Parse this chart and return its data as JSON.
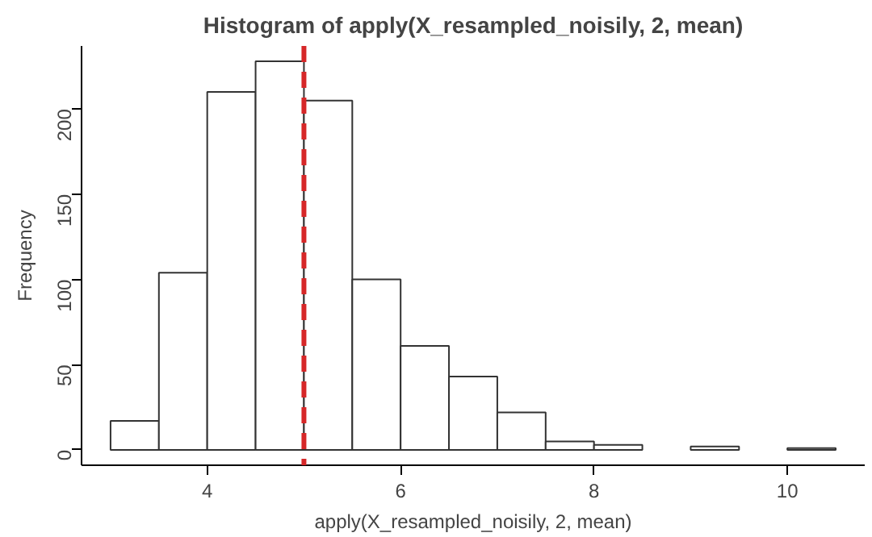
{
  "chart_data": {
    "type": "histogram",
    "title": "Histogram of apply(X_resampled_noisily, 2, mean)",
    "xlabel": "apply(X_resampled_noisily, 2, mean)",
    "ylabel": "Frequency",
    "bins": [
      3,
      3.5,
      4,
      4.5,
      5,
      5.5,
      6,
      6.5,
      7,
      7.5,
      8,
      8.5,
      9,
      9.5,
      10,
      10.5
    ],
    "values": [
      17,
      104,
      210,
      228,
      205,
      100,
      61,
      43,
      22,
      5,
      3,
      0,
      2,
      0,
      1
    ],
    "color": "#ffffff",
    "xlim": [
      2.7,
      10.8
    ],
    "xticks": [
      4,
      6,
      8,
      10
    ],
    "ylim": [
      -9,
      237
    ],
    "yticks": [
      0,
      50,
      100,
      150,
      200
    ],
    "ref_lines": [
      {
        "axis": "x",
        "value": 5,
        "color": "#d62728",
        "line_style": "dashed"
      }
    ],
    "grid": false
  }
}
